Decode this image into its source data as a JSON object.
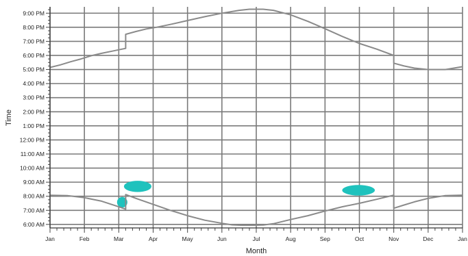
{
  "chart_data": {
    "type": "line",
    "xlabel": "Month",
    "ylabel": "Time",
    "x_tick_labels": [
      "Jan",
      "Feb",
      "Mar",
      "Apr",
      "May",
      "Jun",
      "Jul",
      "Aug",
      "Sep",
      "Oct",
      "Nov",
      "Dec",
      "Jan"
    ],
    "y_tick_labels": [
      "6:00 AM",
      "7:00 AM",
      "8:00 AM",
      "9:00 AM",
      "10:00 AM",
      "11:00 AM",
      "12:00 PM",
      "1:00 PM",
      "2:00 PM",
      "3:00 PM",
      "4:00 PM",
      "5:00 PM",
      "6:00 PM",
      "7:00 PM",
      "8:00 PM",
      "9:00 PM"
    ],
    "xlim": [
      0,
      12
    ],
    "ylim_hours": [
      5.75,
      21.45
    ],
    "grid": true,
    "colors": {
      "line": "#8a8a8a",
      "grid": "#7a7a7a",
      "blob": "#1fc2bd"
    },
    "series": [
      {
        "role": "upper",
        "x": [
          0.0,
          0.3,
          0.6,
          0.9,
          1.2,
          1.5,
          1.8,
          2.1,
          2.2,
          2.2,
          2.5,
          2.8,
          3.1,
          3.5,
          4.0,
          4.5,
          5.0,
          5.5,
          5.8,
          6.2,
          6.5,
          7.0,
          7.5,
          8.0,
          8.5,
          9.0,
          9.5,
          10.0,
          10.0,
          10.3,
          10.6,
          11.0,
          11.5,
          12.0
        ],
        "y": [
          17.15,
          17.33,
          17.55,
          17.75,
          17.98,
          18.15,
          18.3,
          18.45,
          18.5,
          19.5,
          19.7,
          19.88,
          20.0,
          20.2,
          20.48,
          20.75,
          21.0,
          21.2,
          21.28,
          21.28,
          21.2,
          20.88,
          20.42,
          19.9,
          19.35,
          18.85,
          18.45,
          18.0,
          17.45,
          17.25,
          17.1,
          17.0,
          17.0,
          17.2
        ]
      },
      {
        "role": "lower",
        "x": [
          0.0,
          0.5,
          1.0,
          1.5,
          2.0,
          2.2,
          2.2,
          2.5,
          3.0,
          3.5,
          4.0,
          4.5,
          5.0,
          5.3,
          5.6,
          5.9,
          6.2,
          6.5,
          7.0,
          7.5,
          8.0,
          8.5,
          9.0,
          9.5,
          10.0,
          10.0,
          10.3,
          10.6,
          11.0,
          11.5,
          12.0
        ],
        "y": [
          8.07,
          8.05,
          7.9,
          7.65,
          7.25,
          7.08,
          8.12,
          7.85,
          7.42,
          7.0,
          6.62,
          6.3,
          6.08,
          5.97,
          5.94,
          5.94,
          5.96,
          6.05,
          6.35,
          6.62,
          6.95,
          7.25,
          7.5,
          7.78,
          8.08,
          7.15,
          7.38,
          7.6,
          7.85,
          8.05,
          8.08
        ]
      }
    ],
    "blobs": [
      {
        "x": [
          2.15,
          2.95
        ],
        "y": [
          8.3,
          9.1
        ]
      },
      {
        "x": [
          1.95,
          2.25
        ],
        "y": [
          7.2,
          7.95
        ]
      },
      {
        "x": [
          8.5,
          9.45
        ],
        "y": [
          8.05,
          8.8
        ]
      }
    ]
  }
}
